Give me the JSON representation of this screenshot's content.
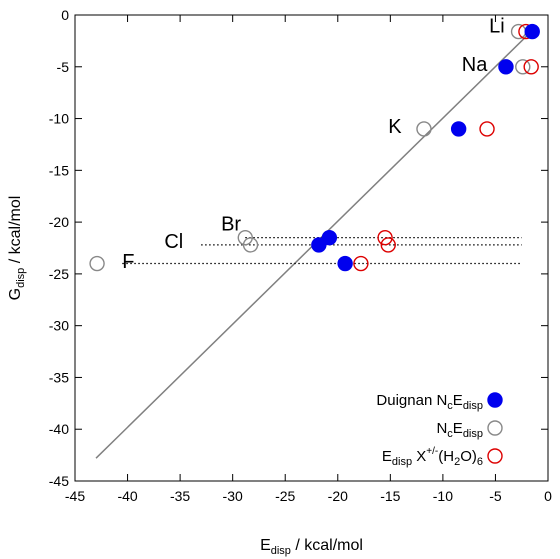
{
  "chart_data": {
    "type": "scatter",
    "title": "",
    "xlabel": {
      "main": "E",
      "sub": "disp",
      "rest": " / kcal/mol"
    },
    "ylabel": {
      "main": "G",
      "sub": "disp",
      "rest": " / kcal/mol"
    },
    "xlim": [
      -45,
      0
    ],
    "ylim": [
      -45,
      0
    ],
    "xticks": [
      -45,
      -40,
      -35,
      -30,
      -25,
      -20,
      -15,
      -10,
      -5,
      0
    ],
    "yticks": [
      0,
      -5,
      -10,
      -15,
      -20,
      -25,
      -30,
      -35,
      -40,
      -45
    ],
    "grid": false,
    "legend_position": "bottom-right",
    "colors": {
      "duignan": "#0000ee",
      "nc": "#888888",
      "cluster": "#dd0000",
      "fit_line": "#808080",
      "guide": "#000000"
    },
    "series": [
      {
        "name": "Duignan N_cE_disp",
        "marker": "filled-circle",
        "color": "#0000ee",
        "points": [
          {
            "ion": "Li",
            "x": -1.5,
            "y": -1.6
          },
          {
            "ion": "Na",
            "x": -4.0,
            "y": -5.0
          },
          {
            "ion": "K",
            "x": -8.5,
            "y": -11.0
          },
          {
            "ion": "Br",
            "x": -20.8,
            "y": -21.5
          },
          {
            "ion": "Cl",
            "x": -21.8,
            "y": -22.2
          },
          {
            "ion": "F",
            "x": -19.3,
            "y": -24.0
          }
        ]
      },
      {
        "name": "N_cE_disp",
        "marker": "open-circle",
        "color": "#888888",
        "points": [
          {
            "ion": "Li",
            "x": -2.8,
            "y": -1.6
          },
          {
            "ion": "Na",
            "x": -2.4,
            "y": -5.0
          },
          {
            "ion": "K",
            "x": -11.8,
            "y": -11.0
          },
          {
            "ion": "Br",
            "x": -28.8,
            "y": -21.5
          },
          {
            "ion": "Cl",
            "x": -28.3,
            "y": -22.2
          },
          {
            "ion": "F",
            "x": -42.9,
            "y": -24.0
          }
        ]
      },
      {
        "name": "E_disp X+/-(H2O)6",
        "marker": "open-circle",
        "color": "#dd0000",
        "points": [
          {
            "ion": "Li",
            "x": -2.1,
            "y": -1.6
          },
          {
            "ion": "Na",
            "x": -1.6,
            "y": -5.0
          },
          {
            "ion": "K",
            "x": -5.8,
            "y": -11.0
          },
          {
            "ion": "Br",
            "x": -15.5,
            "y": -21.5
          },
          {
            "ion": "Cl",
            "x": -15.2,
            "y": -22.2
          },
          {
            "ion": "F",
            "x": -17.8,
            "y": -24.0
          }
        ]
      }
    ],
    "fit_line": {
      "x": [
        -43,
        -1.2
      ],
      "y": [
        -42.8,
        -1.2
      ]
    },
    "guide_lines": [
      {
        "ion": "Br",
        "y": -21.5,
        "x_from": -28.8,
        "x_to": -2.5
      },
      {
        "ion": "Cl",
        "y": -22.2,
        "x_from": -33.0,
        "x_to": -2.5
      },
      {
        "ion": "F",
        "y": -24.0,
        "x_from": -40.5,
        "x_to": -2.5
      }
    ],
    "annotations": [
      {
        "text": "Li",
        "x": -5.6,
        "y": -1.2
      },
      {
        "text": "Na",
        "x": -8.2,
        "y": -4.9
      },
      {
        "text": "K",
        "x": -15.2,
        "y": -10.9
      },
      {
        "text": "Br",
        "x": -31.1,
        "y": -20.3
      },
      {
        "text": "Cl",
        "x": -36.5,
        "y": -22.0
      },
      {
        "text": "F",
        "x": -40.5,
        "y": -23.9
      }
    ],
    "legend": [
      {
        "main": "Duignan N",
        "sub1": "c",
        "mid": "E",
        "sub2": "disp"
      },
      {
        "main": "N",
        "sub1": "c",
        "mid": "E",
        "sub2": "disp"
      },
      {
        "main": "E",
        "sub1": "disp",
        "mid": " X",
        "sup": "+/-",
        "tail": "(H",
        "sub2": "2",
        "tail2": "O)",
        "sub3": "6"
      }
    ]
  }
}
